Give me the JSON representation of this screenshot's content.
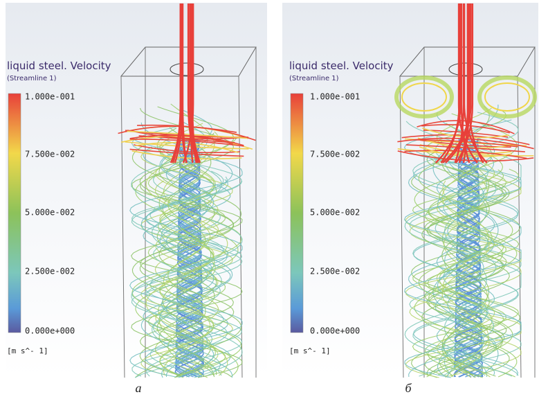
{
  "panels": [
    {
      "legend": {
        "title": "liquid steel. Velocity",
        "subtitle": "(Streamline 1)",
        "ticks": [
          "1.000e-001",
          "7.500e-002",
          "5.000e-002",
          "2.500e-002",
          "0.000e+000"
        ],
        "unit": "[m s^- 1]"
      },
      "caption": "а"
    },
    {
      "legend": {
        "title": "liquid steel. Velocity",
        "subtitle": "(Streamline 1)",
        "ticks": [
          "1.000e-001",
          "7.500e-002",
          "5.000e-002",
          "2.500e-002",
          "0.000e+000"
        ],
        "unit": "[m s^- 1]"
      },
      "caption": "б"
    }
  ]
}
